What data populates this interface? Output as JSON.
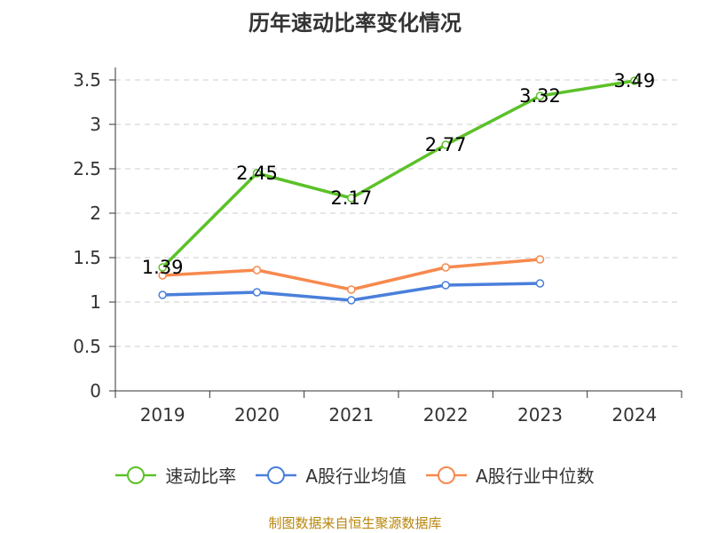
{
  "chart_data": {
    "type": "line",
    "title": "历年速动比率变化情况",
    "categories": [
      "2019",
      "2020",
      "2021",
      "2022",
      "2023",
      "2024"
    ],
    "ylim": [
      0,
      3.5
    ],
    "yticks": [
      "0",
      "0.5",
      "1",
      "1.5",
      "2",
      "2.5",
      "3",
      "3.5"
    ],
    "grid": true,
    "legend_position": "bottom",
    "series": [
      {
        "name": "速动比率",
        "color": "#5cc129",
        "values": [
          1.39,
          2.45,
          2.17,
          2.77,
          3.32,
          3.49
        ],
        "labels": [
          "1.39",
          "2.45",
          "2.17",
          "2.77",
          "3.32",
          "3.49"
        ]
      },
      {
        "name": "A股行业均值",
        "color": "#4a7fdb",
        "values": [
          1.08,
          1.11,
          1.02,
          1.19,
          1.21,
          null
        ]
      },
      {
        "name": "A股行业中位数",
        "color": "#f7894e",
        "values": [
          1.3,
          1.36,
          1.14,
          1.39,
          1.48,
          null
        ]
      }
    ]
  },
  "footer": {
    "source": "制图数据来自恒生聚源数据库"
  }
}
